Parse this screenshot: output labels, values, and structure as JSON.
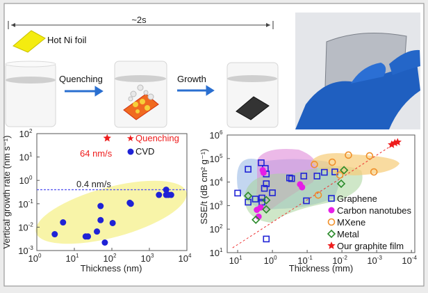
{
  "schematic": {
    "time_label": "~2s",
    "foil_label": "Hot Ni foil",
    "step1_label": "Quenching",
    "step2_label": "Growth"
  },
  "photo": {
    "icon": "photo-hand-holding-graphite-film"
  },
  "chart_data": [
    {
      "type": "scatter",
      "xlabel": "Thickness (nm)",
      "ylabel": "Vertical growth rate (nm s⁻¹)",
      "xscale": "log",
      "yscale": "log",
      "xlim": [
        1,
        10000
      ],
      "ylim": [
        0.001,
        100
      ],
      "x_tick_exponents": [
        0,
        1,
        2,
        3,
        4
      ],
      "y_tick_exponents": [
        -3,
        -2,
        -1,
        0,
        1,
        2
      ],
      "reference_line": {
        "y": 0.4,
        "label": "0.4 nm/s",
        "color": "#5a5af0"
      },
      "annotation": "64 nm/s",
      "legend_position": "top-right",
      "series": [
        {
          "name": "Quenching",
          "marker": "star",
          "color": "#ee1c1c",
          "points": [
            [
              75,
              64
            ]
          ]
        },
        {
          "name": "CVD",
          "marker": "circle",
          "color": "#1f22d6",
          "points": [
            [
              3,
              0.005
            ],
            [
              5,
              0.016
            ],
            [
              20,
              0.004
            ],
            [
              23,
              0.004
            ],
            [
              40,
              0.0065
            ],
            [
              50,
              0.08
            ],
            [
              50,
              0.02
            ],
            [
              65,
              0.0022
            ],
            [
              105,
              0.015
            ],
            [
              300,
              0.11
            ],
            [
              320,
              0.1
            ],
            [
              1800,
              0.24
            ],
            [
              2800,
              0.4
            ],
            [
              2800,
              0.24
            ],
            [
              3200,
              0.24
            ],
            [
              3800,
              0.24
            ]
          ]
        }
      ]
    },
    {
      "type": "scatter",
      "xlabel": "Thickness (mm)",
      "ylabel": "SSE/t (dB cm² g⁻¹)",
      "xscale": "log-reversed",
      "yscale": "log",
      "xlim": [
        20,
        8e-05
      ],
      "ylim": [
        10,
        1000000
      ],
      "x_tick_exponents": [
        1,
        0,
        -1,
        -2,
        -3,
        -4
      ],
      "y_tick_exponents": [
        1,
        2,
        3,
        4,
        5,
        6
      ],
      "legend_position": "bottom-right",
      "trend_line": [
        [
          14,
          16
        ],
        [
          0.00043,
          310000
        ]
      ],
      "series": [
        {
          "name": "Graphene",
          "marker": "square",
          "color": "#1f22d6",
          "points": [
            [
              5,
              35000
            ],
            [
              2.1,
              66000
            ],
            [
              1.6,
              38000
            ],
            [
              1.5,
              22000
            ],
            [
              1.5,
              8500
            ],
            [
              1.7,
              5400
            ],
            [
              1.0,
              3500
            ],
            [
              10,
              3400
            ],
            [
              5,
              1400
            ],
            [
              3.1,
              1900
            ],
            [
              2.0,
              2100
            ],
            [
              2.0,
              1400
            ],
            [
              0.32,
              15000
            ],
            [
              0.28,
              14000
            ],
            [
              0.125,
              18000
            ],
            [
              0.052,
              18000
            ],
            [
              0.032,
              26000
            ],
            [
              0.016,
              27000
            ],
            [
              0.105,
              1600
            ],
            [
              1.5,
              38
            ]
          ]
        },
        {
          "name": "Carbon nanotubes",
          "marker": "circle",
          "color": "#e61ee6",
          "points": [
            [
              1.9,
              32000
            ],
            [
              1.8,
              25000
            ],
            [
              0.16,
              8000
            ],
            [
              0.14,
              6000
            ],
            [
              2.8,
              660
            ],
            [
              2.5,
              340
            ],
            [
              2.2,
              830
            ]
          ]
        },
        {
          "name": "MXene",
          "marker": "circle-open",
          "color": "#f0902a",
          "points": [
            [
              0.062,
              56000
            ],
            [
              0.019,
              70000
            ],
            [
              0.0065,
              140000
            ],
            [
              0.0016,
              130000
            ],
            [
              0.0012,
              27000
            ],
            [
              0.0115,
              20000
            ],
            [
              0.048,
              2800
            ]
          ]
        },
        {
          "name": "Metal",
          "marker": "diamond",
          "color": "#2a8a2a",
          "points": [
            [
              5,
              2600
            ],
            [
              1.5,
              1700
            ],
            [
              1.5,
              690
            ],
            [
              3.0,
              250
            ],
            [
              0.0087,
              32000
            ],
            [
              0.0105,
              8500
            ]
          ]
        },
        {
          "name": "Our graphite film",
          "marker": "star",
          "color": "#ee1c1c",
          "points": [
            [
              0.00037,
              390000
            ],
            [
              0.0003,
              460000
            ],
            [
              0.00025,
              500000
            ]
          ]
        }
      ]
    }
  ]
}
